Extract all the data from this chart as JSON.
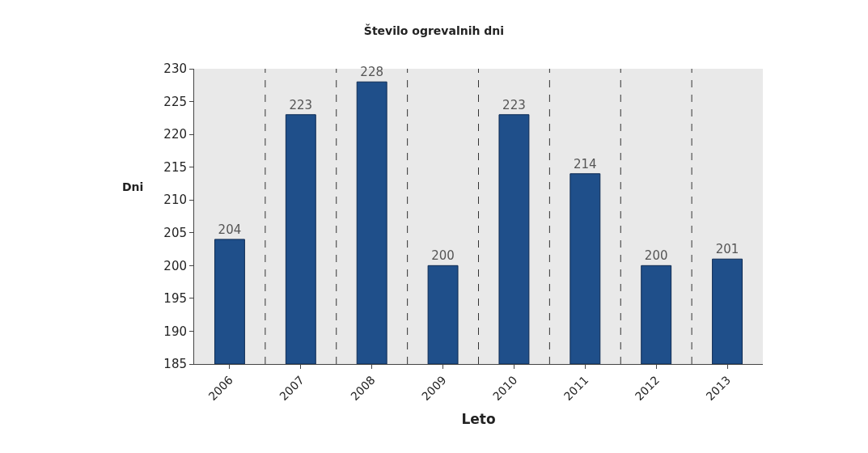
{
  "chart_data": {
    "type": "bar",
    "title": "Število ogrevalnih dni",
    "xlabel": "Leto",
    "ylabel": "Dni",
    "categories": [
      "2006",
      "2007",
      "2008",
      "2009",
      "2010",
      "2011",
      "2012",
      "2013"
    ],
    "values": [
      204,
      223,
      228,
      200,
      223,
      214,
      200,
      201
    ],
    "color": "#1f4f8a",
    "ylim": [
      185,
      230
    ],
    "yticks": [
      185,
      190,
      195,
      200,
      205,
      210,
      215,
      220,
      225,
      230
    ],
    "grid": "x",
    "data_labels": true
  }
}
